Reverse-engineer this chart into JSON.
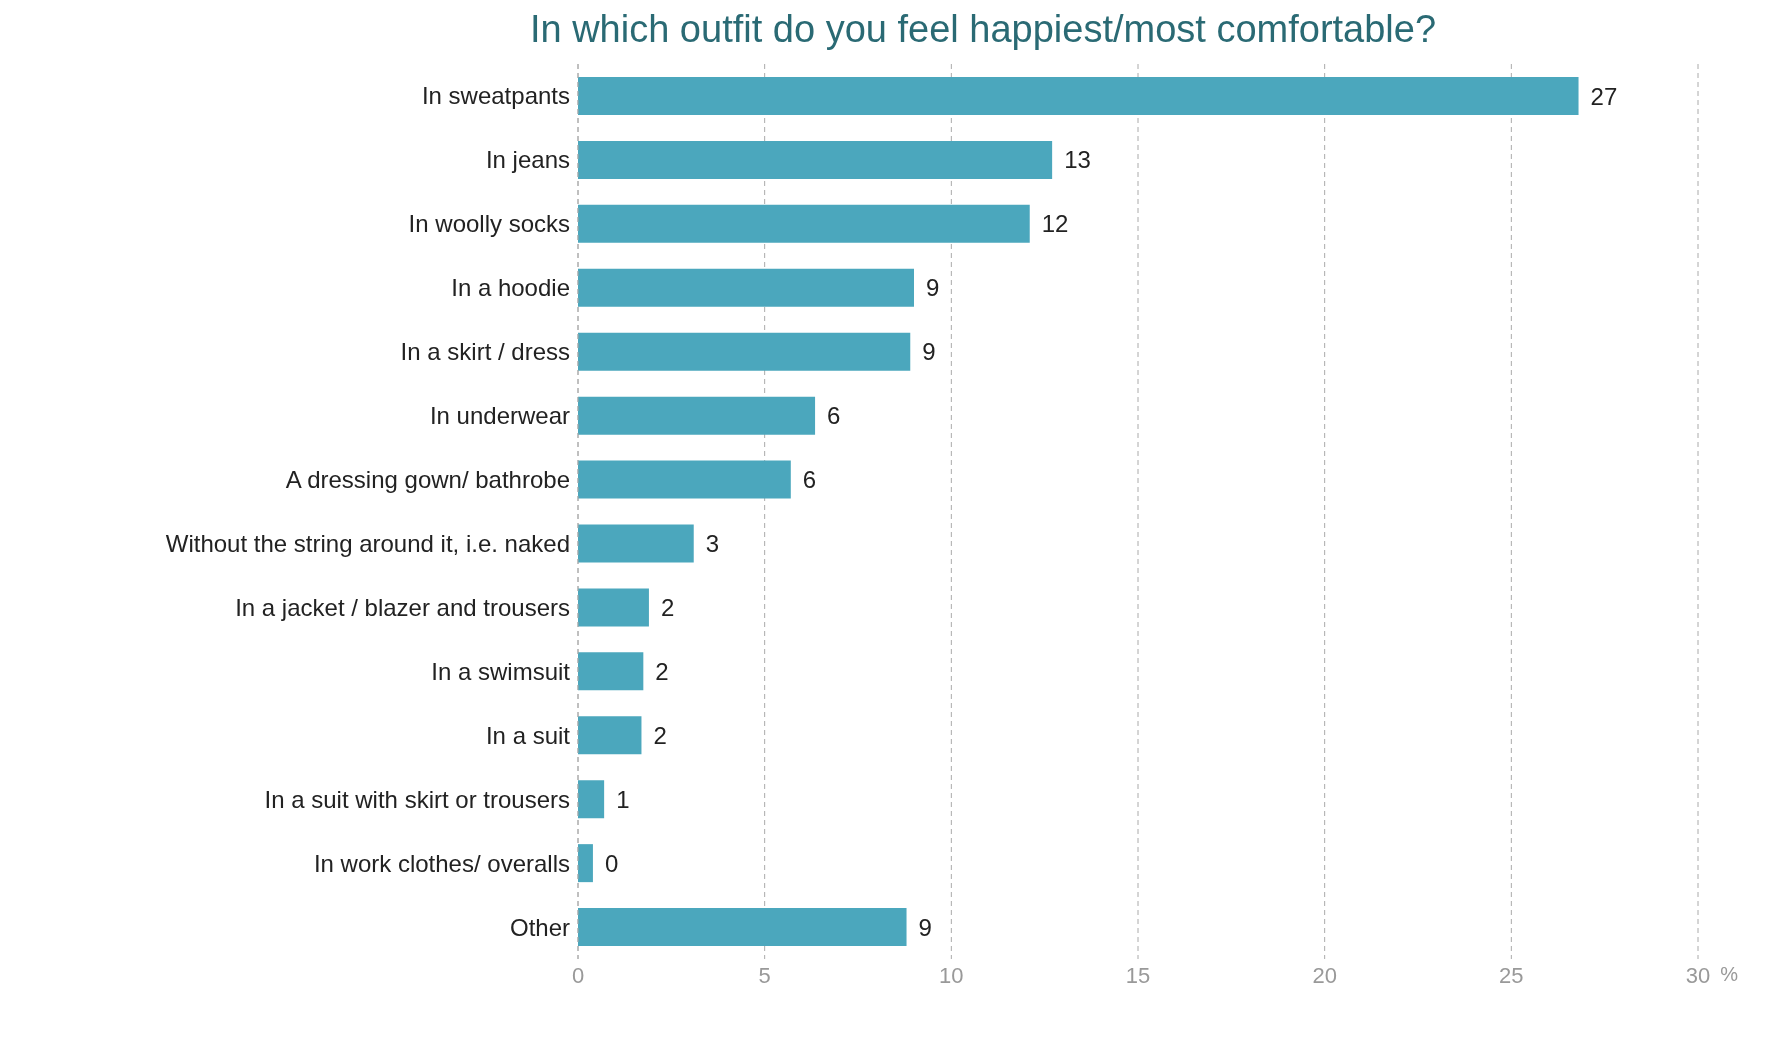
{
  "chart_data": {
    "type": "bar",
    "orientation": "horizontal",
    "title": "In which outfit do you feel happiest/most comfortable?",
    "xlabel": "%",
    "categories": [
      "In sweatpants",
      "In jeans",
      "In woolly socks",
      "In a hoodie",
      "In a skirt / dress",
      "In underwear",
      "A dressing gown/ bathrobe",
      "Without the string around it, i.e. naked",
      "In a jacket / blazer and trousers",
      "In a swimsuit",
      "In a suit",
      "In a suit with skirt or trousers",
      "In work clothes/ overalls",
      "Other"
    ],
    "values": [
      26.8,
      12.7,
      12.1,
      9.0,
      8.9,
      6.35,
      5.7,
      3.1,
      1.9,
      1.75,
      1.7,
      0.7,
      0.4,
      8.8
    ],
    "value_labels": [
      "27",
      "13",
      "12",
      "9",
      "9",
      "6",
      "6",
      "3",
      "2",
      "2",
      "2",
      "1",
      "0",
      "9"
    ],
    "color": "#4ba7bd",
    "xlim": [
      0,
      30
    ],
    "xticks": [
      0,
      5,
      10,
      15,
      20,
      25,
      30
    ],
    "grid": "x"
  }
}
